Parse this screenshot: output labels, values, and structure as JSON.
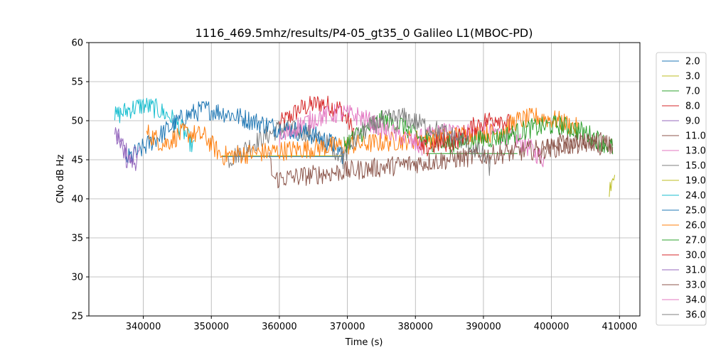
{
  "chart_data": {
    "type": "line",
    "title": "1116_469.5mhz/results/P4-05_gt35_0 Galileo L1(MBOC-PD)",
    "xlabel": "Time (s)",
    "ylabel": "CNo dB Hz",
    "xlim": [
      332000,
      413000
    ],
    "ylim": [
      25,
      60
    ],
    "xticks": [
      340000,
      350000,
      360000,
      370000,
      380000,
      390000,
      400000,
      410000
    ],
    "xtick_labels": [
      "340000",
      "350000",
      "360000",
      "370000",
      "380000",
      "390000",
      "400000",
      "410000"
    ],
    "yticks": [
      25,
      30,
      35,
      40,
      45,
      50,
      55,
      60
    ],
    "ytick_labels": [
      "25",
      "30",
      "35",
      "40",
      "45",
      "50",
      "55",
      "60"
    ],
    "grid": true,
    "legend_position": "right",
    "series": [
      {
        "name": "2.0",
        "color": "#1f77b4",
        "x": [
          351500,
          369500
        ],
        "y": [
          45.4,
          45.4
        ]
      },
      {
        "name": "3.0",
        "color": "#bcbd22",
        "x": [
          351500,
          369500
        ],
        "y": [
          45.5,
          45.5
        ]
      },
      {
        "name": "7.0",
        "color": "#2ca02c",
        "x": [
          381500,
          395000
        ],
        "y": [
          45.8,
          45.8
        ]
      },
      {
        "name": "8.0",
        "color": "#d62728",
        "x": [
          360000,
          363000,
          366000,
          369000,
          371000
        ],
        "y": [
          49.5,
          51.5,
          52.3,
          51.5,
          48.5
        ]
      },
      {
        "name": "9.0",
        "color": "#9467bd",
        "x": [
          335800,
          336500,
          337500,
          338500,
          339500
        ],
        "y": [
          48.5,
          47.5,
          46.0,
          44.5,
          45.5
        ]
      },
      {
        "name": "11.0",
        "color": "#8c564b",
        "x": [
          398000,
          400000,
          403000,
          406000,
          409000
        ],
        "y": [
          45.5,
          47.0,
          47.5,
          47.0,
          46.5
        ]
      },
      {
        "name": "13.0",
        "color": "#e377c2",
        "x": [
          380000,
          384000,
          388000,
          392000,
          396000,
          399000
        ],
        "y": [
          47.5,
          48.5,
          48.5,
          48.5,
          47.0,
          45.0
        ]
      },
      {
        "name": "15.0",
        "color": "#7f7f7f",
        "x": [
          352500,
          356000,
          360000,
          364000,
          368000,
          369500
        ],
        "y": [
          45.0,
          47.0,
          49.0,
          48.5,
          46.5,
          45.0
        ]
      },
      {
        "name": "19.0",
        "color": "#bcbd22",
        "x": [
          408500,
          409000,
          409300
        ],
        "y": [
          41.5,
          43.0,
          44.0
        ]
      },
      {
        "name": "24.0",
        "color": "#17becf",
        "x": [
          335800,
          338000,
          340000,
          342000,
          344000,
          346000,
          347500
        ],
        "y": [
          50.5,
          51.5,
          52.0,
          51.5,
          50.5,
          48.5,
          46.5
        ]
      },
      {
        "name": "25.0",
        "color": "#1f77b4",
        "x": [
          337500,
          340000,
          343000,
          346000,
          349000,
          352000,
          356000,
          360000,
          364000,
          368000,
          369500
        ],
        "y": [
          45.0,
          46.5,
          48.5,
          50.5,
          51.5,
          51.0,
          50.0,
          49.0,
          48.5,
          47.0,
          45.5
        ]
      },
      {
        "name": "26.0",
        "color": "#ff7f0e",
        "x": [
          340500,
          343000,
          346000,
          349000,
          351500,
          392000,
          395000,
          398000,
          401000,
          404000
        ],
        "y": [
          48.5,
          47.0,
          48.5,
          48.0,
          45.5,
          48.5,
          50.0,
          50.5,
          50.0,
          49.0
        ]
      },
      {
        "name": "27.0",
        "color": "#2ca02c",
        "x": [
          369500,
          372000,
          375000,
          378000,
          381000,
          385000,
          389000,
          393000,
          397000,
          401000,
          405000,
          409000
        ],
        "y": [
          47.0,
          48.5,
          50.0,
          49.5,
          47.5,
          47.0,
          47.5,
          48.0,
          49.0,
          49.5,
          48.5,
          46.5
        ]
      },
      {
        "name": "30.0",
        "color": "#d62728",
        "x": [
          380500,
          383000,
          386000,
          389000,
          392000,
          394000
        ],
        "y": [
          46.0,
          47.0,
          47.5,
          49.5,
          50.5,
          49.5
        ]
      },
      {
        "name": "31.0",
        "color": "#9467bd",
        "x": [
          336000,
          337000,
          338000,
          339000
        ],
        "y": [
          48.0,
          46.0,
          44.5,
          46.0
        ]
      },
      {
        "name": "33.0",
        "color": "#8c564b",
        "x": [
          358500,
          359000,
          359300,
          405000,
          407000,
          409000
        ],
        "y": [
          45.5,
          43.0,
          42.5,
          47.0,
          47.5,
          46.5
        ]
      },
      {
        "name": "34.0",
        "color": "#e377c2",
        "x": [
          360000,
          363000,
          366000,
          369000,
          372000,
          375000,
          378000,
          381000
        ],
        "y": [
          47.5,
          49.5,
          50.5,
          51.0,
          50.5,
          49.0,
          48.0,
          46.5
        ]
      },
      {
        "name": "36.0",
        "color": "#7f7f7f",
        "x": [
          369000,
          372000,
          375000,
          378000,
          381000,
          384000,
          387000,
          390000,
          391000
        ],
        "y": [
          45.0,
          48.5,
          50.0,
          50.5,
          49.5,
          48.5,
          47.5,
          45.5,
          44.0
        ]
      }
    ]
  }
}
